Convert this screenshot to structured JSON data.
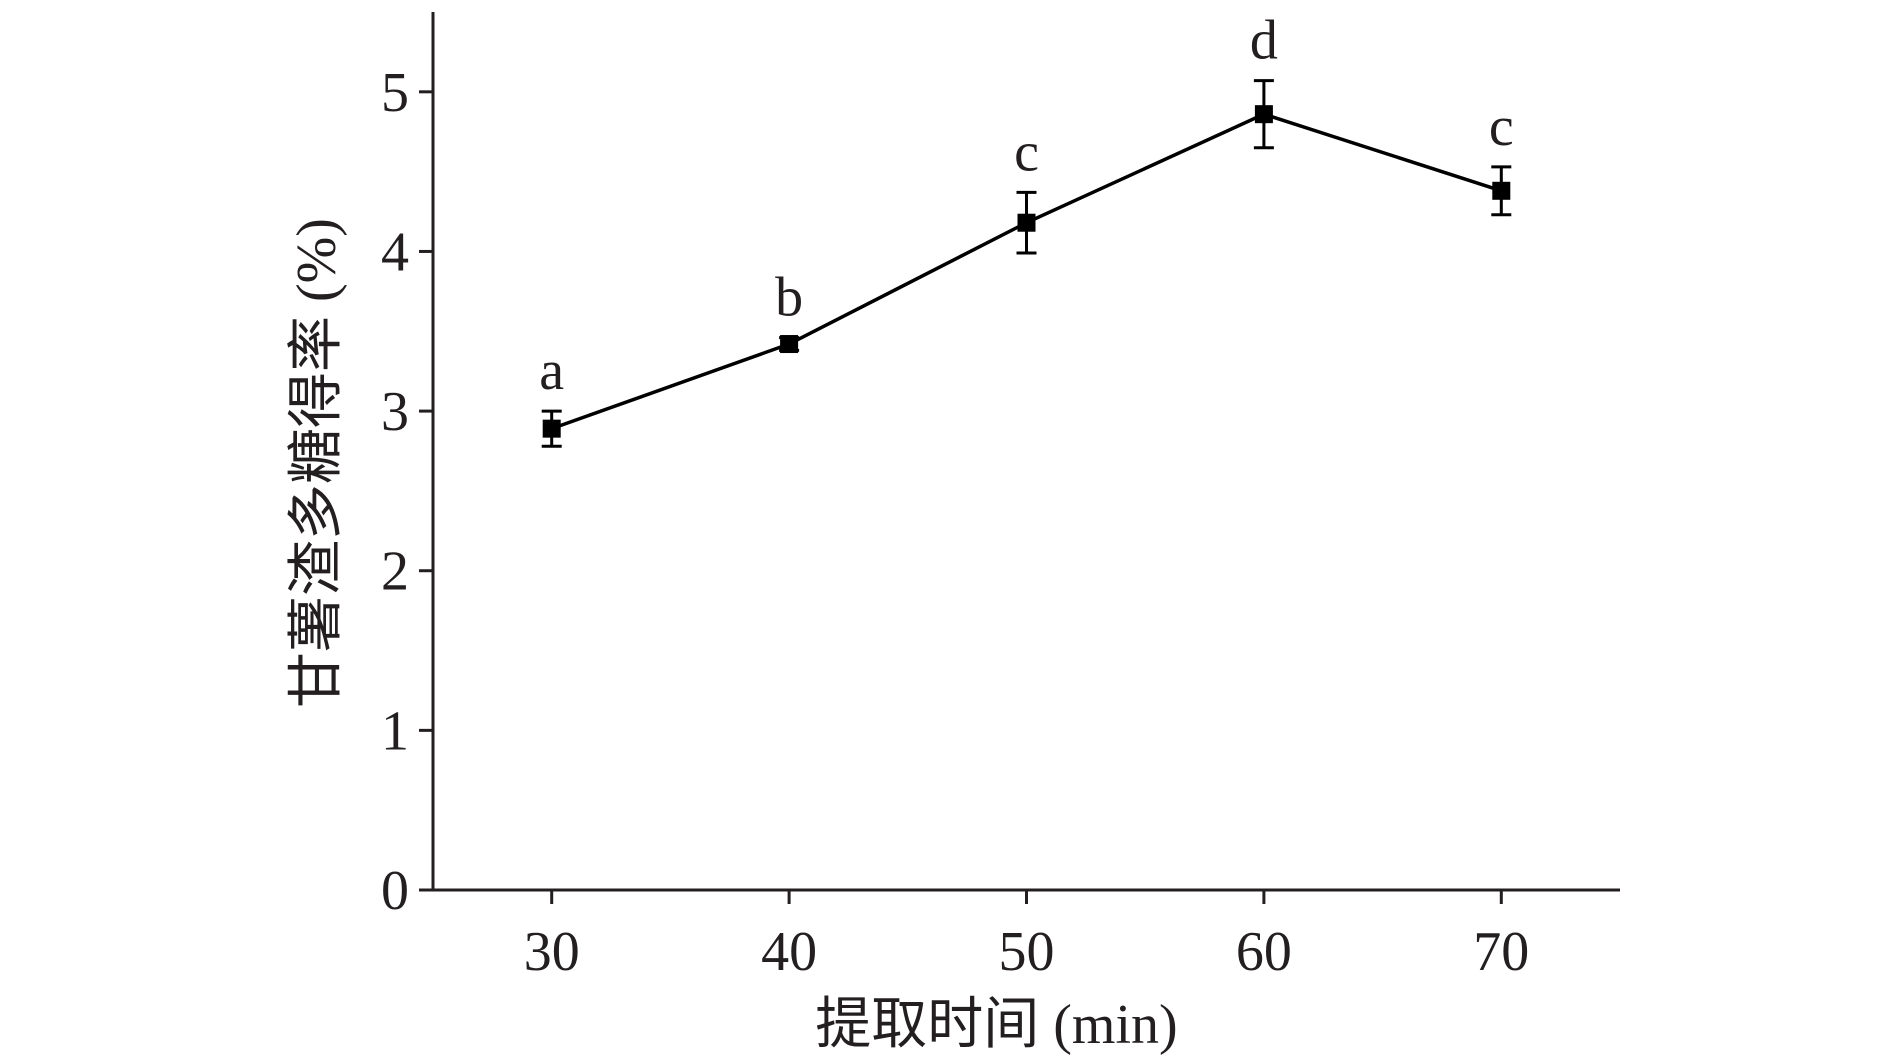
{
  "chart_data": {
    "type": "line",
    "xlabel": "提取时间 (min)",
    "ylabel": "甘薯渣多糖得率 (%)",
    "x": [
      30,
      40,
      50,
      60,
      70
    ],
    "xticks": [
      "30",
      "40",
      "50",
      "60",
      "70"
    ],
    "xlim": [
      25,
      75
    ],
    "yticks": [
      "0",
      "1",
      "2",
      "3",
      "4",
      "5"
    ],
    "ylim": [
      0,
      5.5
    ],
    "series": [
      {
        "values": [
          2.89,
          3.42,
          4.18,
          4.86,
          4.38
        ],
        "errors": [
          0.11,
          0.04,
          0.19,
          0.21,
          0.15
        ],
        "significance_labels": [
          "a",
          "b",
          "c",
          "d",
          "c"
        ]
      }
    ],
    "grid": false,
    "legend": "none",
    "colors": {
      "line": "#000000",
      "axis": "#231f20",
      "text": "#231f20"
    },
    "marker": "square"
  }
}
